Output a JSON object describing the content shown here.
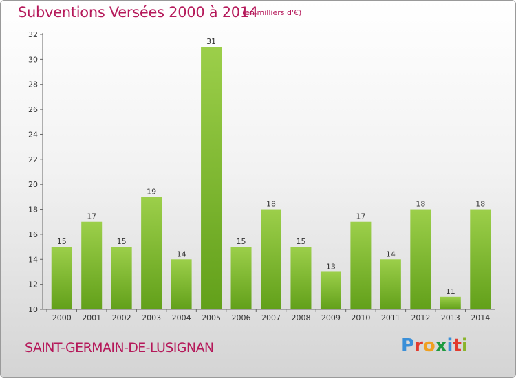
{
  "chart_data": {
    "type": "bar",
    "title": "Subventions Versées 2000 à 2014",
    "unit_label": "(en milliers d'€)",
    "categories": [
      "2000",
      "2001",
      "2002",
      "2003",
      "2004",
      "2005",
      "2006",
      "2007",
      "2008",
      "2009",
      "2010",
      "2011",
      "2012",
      "2013",
      "2014"
    ],
    "values": [
      15,
      17,
      15,
      19,
      14,
      31,
      15,
      18,
      15,
      13,
      17,
      14,
      18,
      11,
      18
    ],
    "ylim": [
      10,
      32
    ],
    "yticks": [
      10,
      12,
      14,
      16,
      18,
      20,
      22,
      24,
      26,
      28,
      30,
      32
    ],
    "grid": false,
    "bar_color_top": "#9ccf4a",
    "bar_color_bottom": "#62a01a"
  },
  "footer": {
    "commune": "SAINT-GERMAIN-DE-LUSIGNAN",
    "logo": {
      "text": "Proxiti",
      "letter_colors": [
        "#3a8fd8",
        "#e23a2e",
        "#f0a020",
        "#1e9a3e",
        "#3a8fd8",
        "#e23a2e",
        "#8ab42a"
      ]
    }
  }
}
